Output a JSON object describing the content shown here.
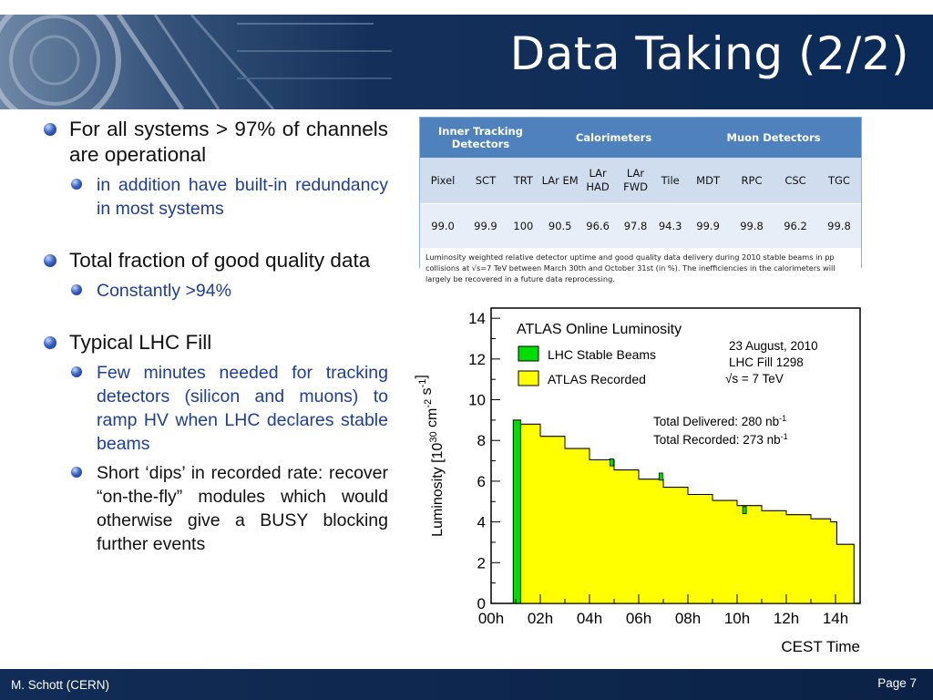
{
  "slide": {
    "title": "Data Taking (2/2)",
    "footer_author": "M. Schott (CERN)",
    "page_label": "Page 7"
  },
  "bullets": [
    {
      "text": "For all systems > 97% of channels are operational",
      "subs": [
        {
          "text": "in addition have built-in redundancy in most systems",
          "color": "#1f3d99"
        }
      ]
    },
    {
      "text": "Total fraction of good quality data",
      "subs": [
        {
          "text": "Constantly >94%",
          "color": "#1f3d99"
        }
      ]
    },
    {
      "text": "Typical LHC Fill",
      "subs": [
        {
          "text": "Few minutes needed for tracking detectors (silicon and muons) to ramp HV when LHC declares stable beams",
          "color": "#1f3d99"
        },
        {
          "text": "Short ‘dips’ in recorded rate: recover “on-the-fly” modules which would otherwise give a BUSY blocking further events",
          "color": "#111111"
        }
      ]
    }
  ],
  "table": {
    "groups": [
      "Inner Tracking Detectors",
      "Calorimeters",
      "Muon Detectors"
    ],
    "sub_headers": [
      "Pixel",
      "SCT",
      "TRT",
      "LAr EM",
      "LAr HAD",
      "LAr FWD",
      "Tile",
      "MDT",
      "RPC",
      "CSC",
      "TGC"
    ],
    "values": [
      "99.0",
      "99.9",
      "100",
      "90.5",
      "96.6",
      "97.8",
      "94.3",
      "99.9",
      "99.8",
      "96.2",
      "99.8"
    ],
    "caption": "Luminosity weighted relative detector uptime and good quality data delivery during 2010 stable beams in pp collisions at √s=7 TeV between March 30th and October 31st (in %). The inefficiencies in the calorimeters will largely be recovered in a future data reprocessing."
  },
  "chart_data": {
    "type": "area",
    "title": "ATLAS Online Luminosity",
    "xlabel": "CEST Time",
    "ylabel": "Luminosity [10^30 cm^-2 s^-1]",
    "xlim": [
      0,
      15
    ],
    "ylim": [
      0,
      14.5
    ],
    "x_ticks": [
      "00h",
      "02h",
      "04h",
      "06h",
      "08h",
      "10h",
      "12h",
      "14h"
    ],
    "y_ticks": [
      0,
      2,
      4,
      6,
      8,
      10,
      12,
      14
    ],
    "legend": {
      "placement": "top-left",
      "entries": [
        {
          "name": "LHC Stable Beams",
          "color": "#00dd00"
        },
        {
          "name": "ATLAS Recorded",
          "color": "#ffff00"
        }
      ]
    },
    "annotations": [
      "23 August, 2010",
      "LHC Fill 1298",
      "√s = 7 TeV"
    ],
    "total_delivered": "Total Delivered: 280 nb",
    "total_recorded": "Total Recorded: 273 nb",
    "series": [
      {
        "name": "LHC Stable Beams",
        "x": [
          0.9,
          1.2,
          2.0,
          3.0,
          4.0,
          5.0,
          6.0,
          7.0,
          8.0,
          9.0,
          10.0,
          11.0,
          12.0,
          13.0,
          13.8,
          14.05,
          14.45
        ],
        "y": [
          9.0,
          8.8,
          8.2,
          7.6,
          7.05,
          6.55,
          6.1,
          5.7,
          5.35,
          5.05,
          4.8,
          4.55,
          4.35,
          4.15,
          4.0,
          2.9,
          2.9
        ]
      },
      {
        "name": "ATLAS Recorded",
        "x": [
          1.2,
          2.0,
          3.0,
          4.0,
          5.0,
          6.0,
          7.0,
          8.0,
          9.0,
          10.0,
          11.0,
          12.0,
          13.0,
          13.8,
          14.05,
          14.45
        ],
        "y": [
          8.8,
          8.2,
          7.6,
          7.05,
          6.55,
          6.1,
          5.7,
          5.35,
          5.05,
          4.8,
          4.55,
          4.35,
          4.15,
          4.0,
          2.9,
          2.9
        ]
      }
    ],
    "dips": [
      {
        "x": 4.9,
        "y": 6.75
      },
      {
        "x": 6.9,
        "y": 6.05
      },
      {
        "x": 10.3,
        "y": 4.4
      }
    ]
  }
}
